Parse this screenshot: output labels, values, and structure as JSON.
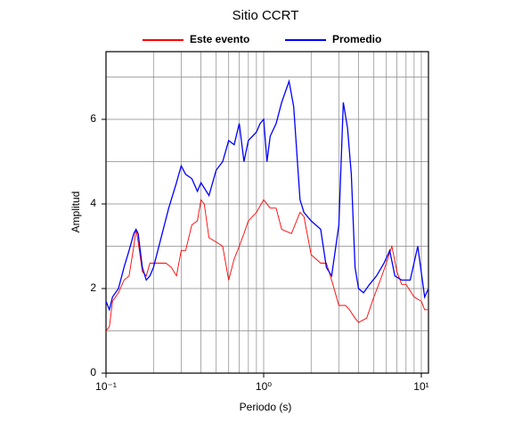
{
  "chart_data": {
    "type": "line",
    "title": "Sitio CCRT",
    "xlabel": "Periodo (s)",
    "ylabel": "Amplitud",
    "xscale": "log",
    "grid": true,
    "legend": "top",
    "xlim": [
      0.1,
      11.1
    ],
    "ylim": [
      0,
      7.6
    ],
    "xticks": [
      {
        "value": 0.1,
        "label": "10⁻¹"
      },
      {
        "value": 1,
        "label": "10⁰"
      },
      {
        "value": 10,
        "label": "10¹"
      }
    ],
    "xminor": [
      0.2,
      0.3,
      0.4,
      0.5,
      0.6,
      0.7,
      0.8,
      0.9,
      2,
      3,
      4,
      5,
      6,
      7,
      8,
      9
    ],
    "yticks": [
      0,
      2,
      4,
      6
    ],
    "yminor": [
      1,
      3,
      5,
      7
    ],
    "series": [
      {
        "name": "Este evento",
        "color": "#ff0000",
        "x": [
          0.1,
          0.105,
          0.11,
          0.12,
          0.13,
          0.14,
          0.15,
          0.155,
          0.16,
          0.17,
          0.18,
          0.19,
          0.2,
          0.22,
          0.24,
          0.26,
          0.28,
          0.3,
          0.32,
          0.35,
          0.38,
          0.4,
          0.42,
          0.45,
          0.5,
          0.55,
          0.6,
          0.65,
          0.7,
          0.75,
          0.8,
          0.9,
          1.0,
          1.1,
          1.2,
          1.3,
          1.5,
          1.7,
          1.8,
          2.0,
          2.3,
          2.5,
          2.7,
          3.0,
          3.3,
          3.5,
          3.8,
          4.0,
          4.5,
          5.0,
          5.5,
          6.0,
          6.5,
          7.0,
          7.5,
          8.0,
          9.0,
          10.0,
          10.5,
          11.1
        ],
        "values": [
          1.0,
          1.1,
          1.7,
          1.9,
          2.2,
          2.3,
          3.0,
          3.4,
          3.1,
          2.4,
          2.3,
          2.6,
          2.6,
          2.6,
          2.6,
          2.5,
          2.3,
          2.9,
          2.9,
          3.5,
          3.6,
          4.1,
          4.0,
          3.2,
          3.1,
          3.0,
          2.2,
          2.7,
          3.0,
          3.3,
          3.6,
          3.8,
          4.1,
          3.9,
          3.9,
          3.4,
          3.3,
          3.8,
          3.7,
          2.8,
          2.6,
          2.6,
          2.2,
          1.6,
          1.6,
          1.5,
          1.3,
          1.2,
          1.3,
          1.8,
          2.2,
          2.6,
          3.0,
          2.4,
          2.1,
          2.1,
          1.8,
          1.7,
          1.5,
          1.5
        ]
      },
      {
        "name": "Promedio",
        "color": "#0000ff",
        "x": [
          0.1,
          0.105,
          0.11,
          0.12,
          0.13,
          0.14,
          0.15,
          0.155,
          0.16,
          0.17,
          0.18,
          0.19,
          0.2,
          0.22,
          0.25,
          0.28,
          0.3,
          0.32,
          0.35,
          0.38,
          0.4,
          0.45,
          0.5,
          0.55,
          0.6,
          0.65,
          0.7,
          0.75,
          0.8,
          0.9,
          0.95,
          1.0,
          1.05,
          1.1,
          1.2,
          1.3,
          1.45,
          1.55,
          1.7,
          1.8,
          2.0,
          2.3,
          2.5,
          2.7,
          3.0,
          3.2,
          3.4,
          3.6,
          3.8,
          4.0,
          4.3,
          4.7,
          5.2,
          5.8,
          6.3,
          6.8,
          7.5,
          8.5,
          9.5,
          10.5,
          11.1
        ],
        "values": [
          1.7,
          1.5,
          1.8,
          2.0,
          2.5,
          2.9,
          3.3,
          3.4,
          3.3,
          2.5,
          2.2,
          2.3,
          2.5,
          3.1,
          3.9,
          4.5,
          4.9,
          4.7,
          4.6,
          4.3,
          4.5,
          4.2,
          4.8,
          5.0,
          5.5,
          5.4,
          5.9,
          5.0,
          5.5,
          5.7,
          5.9,
          6.0,
          5.0,
          5.6,
          5.9,
          6.4,
          6.9,
          6.3,
          4.1,
          3.8,
          3.6,
          3.4,
          2.5,
          2.3,
          3.5,
          6.4,
          5.8,
          4.7,
          2.5,
          2.0,
          1.9,
          2.1,
          2.3,
          2.6,
          2.9,
          2.3,
          2.2,
          2.2,
          3.0,
          1.8,
          2.0
        ]
      }
    ]
  }
}
